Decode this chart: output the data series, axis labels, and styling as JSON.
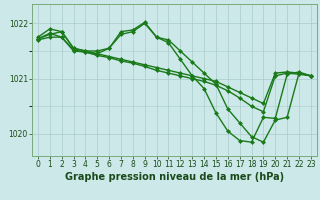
{
  "series": [
    {
      "x": [
        0,
        1,
        2,
        3,
        4,
        5,
        6,
        7,
        8,
        9,
        10,
        11,
        12,
        13,
        14,
        15,
        16,
        17,
        18,
        19,
        20,
        21,
        22,
        23
      ],
      "y": [
        1021.75,
        1021.9,
        1021.85,
        1021.55,
        1021.5,
        1021.5,
        1021.55,
        1021.8,
        1021.85,
        1022.0,
        1021.75,
        1021.7,
        1021.5,
        1021.3,
        1021.1,
        1020.9,
        1020.45,
        1020.2,
        1019.95,
        1019.85,
        1020.25,
        1020.3,
        1021.1,
        1021.05
      ],
      "color": "#1a7a1a",
      "linewidth": 1.0,
      "markersize": 2.5
    },
    {
      "x": [
        0,
        1,
        2,
        3,
        4,
        5,
        6,
        7,
        8,
        9,
        10,
        11,
        12,
        13,
        14,
        15,
        16,
        17,
        18,
        19,
        20,
        21,
        22,
        23
      ],
      "y": [
        1021.72,
        1021.8,
        1021.85,
        1021.55,
        1021.5,
        1021.45,
        1021.4,
        1021.35,
        1021.3,
        1021.25,
        1021.2,
        1021.15,
        1021.1,
        1021.05,
        1021.0,
        1020.95,
        1020.85,
        1020.75,
        1020.65,
        1020.55,
        1021.1,
        1021.12,
        1021.1,
        1021.05
      ],
      "color": "#1a7a1a",
      "linewidth": 1.0,
      "markersize": 2.5
    },
    {
      "x": [
        0,
        1,
        2,
        3,
        4,
        5,
        6,
        7,
        8,
        9,
        10,
        11,
        12,
        13,
        14,
        15,
        16,
        17,
        18,
        19,
        20,
        21,
        22,
        23
      ],
      "y": [
        1021.7,
        1021.75,
        1021.75,
        1021.5,
        1021.48,
        1021.42,
        1021.38,
        1021.32,
        1021.28,
        1021.22,
        1021.15,
        1021.1,
        1021.05,
        1021.0,
        1020.95,
        1020.88,
        1020.78,
        1020.65,
        1020.5,
        1020.4,
        1021.05,
        1021.1,
        1021.08,
        1021.05
      ],
      "color": "#1a7a1a",
      "linewidth": 1.0,
      "markersize": 2.5
    },
    {
      "x": [
        0,
        1,
        2,
        3,
        4,
        5,
        6,
        7,
        8,
        9,
        10,
        11,
        12,
        13,
        14,
        15,
        16,
        17,
        18,
        19,
        20,
        21,
        22,
        23
      ],
      "y": [
        1021.72,
        1021.82,
        1021.75,
        1021.52,
        1021.48,
        1021.45,
        1021.55,
        1021.85,
        1021.88,
        1022.02,
        1021.75,
        1021.65,
        1021.35,
        1021.05,
        1020.82,
        1020.38,
        1020.05,
        1019.88,
        1019.85,
        1020.3,
        1020.28,
        1021.08,
        1021.12,
        1021.05
      ],
      "color": "#1a7a1a",
      "linewidth": 1.0,
      "markersize": 2.5
    }
  ],
  "xlim": [
    -0.5,
    23.5
  ],
  "ylim": [
    1019.6,
    1022.35
  ],
  "yticks": [
    1020,
    1021,
    1022
  ],
  "xticks": [
    0,
    1,
    2,
    3,
    4,
    5,
    6,
    7,
    8,
    9,
    10,
    11,
    12,
    13,
    14,
    15,
    16,
    17,
    18,
    19,
    20,
    21,
    22,
    23
  ],
  "xlabel": "Graphe pression niveau de la mer (hPa)",
  "bg_color": "#cce8e8",
  "grid_color": "#aacccc",
  "line_color": "#1a7a1a",
  "tick_color": "#1a4a1a",
  "label_color": "#1a4a1a",
  "axis_color": "#7aaa7a",
  "title_fontsize": 7.0,
  "tick_fontsize": 5.5
}
